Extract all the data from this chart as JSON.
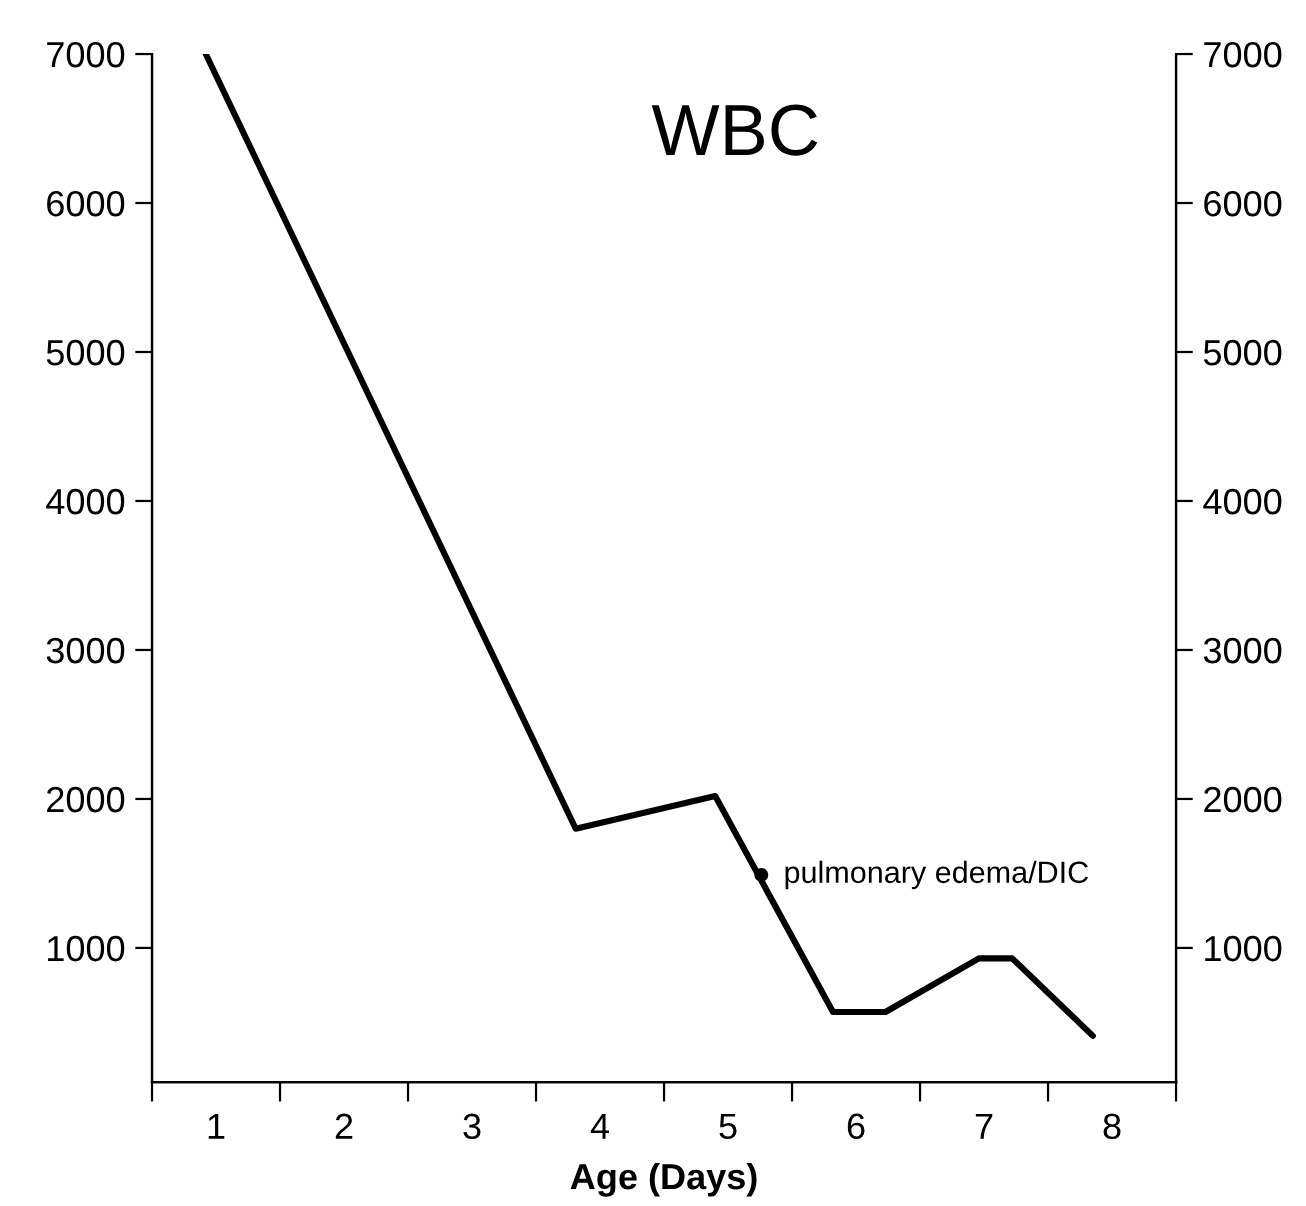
{
  "chart_data": {
    "type": "line",
    "title": "WBC",
    "xlabel": "Age (Days)",
    "x": [
      0.92,
      3.81,
      4.9,
      5.82,
      6.23,
      6.96,
      7.22,
      7.85
    ],
    "series": [
      {
        "color": "#000000",
        "values": [
          7000,
          1800,
          2020,
          570,
          570,
          930,
          930,
          410
        ]
      }
    ],
    "xlim": [
      0.5,
      8.5
    ],
    "xticks": [
      {
        "value": 0.5,
        "label": null
      },
      {
        "value": 1,
        "label": "1"
      },
      {
        "value": 1.5,
        "label": null
      },
      {
        "value": 2,
        "label": "2"
      },
      {
        "value": 2.5,
        "label": null
      },
      {
        "value": 3,
        "label": "3"
      },
      {
        "value": 3.5,
        "label": null
      },
      {
        "value": 4,
        "label": "4"
      },
      {
        "value": 4.5,
        "label": null
      },
      {
        "value": 5,
        "label": "5"
      },
      {
        "value": 5.5,
        "label": null
      },
      {
        "value": 6,
        "label": "6"
      },
      {
        "value": 6.5,
        "label": null
      },
      {
        "value": 7,
        "label": "7"
      },
      {
        "value": 7.5,
        "label": null
      },
      {
        "value": 8,
        "label": "8"
      },
      {
        "value": 8.5,
        "label": null
      }
    ],
    "ylim": [
      100,
      7000
    ],
    "yticks": [
      1000,
      2000,
      3000,
      4000,
      5000,
      6000,
      7000
    ],
    "y2lim": [
      100,
      7000
    ],
    "y2ticks": [
      1000,
      2000,
      3000,
      4000,
      5000,
      6000,
      7000
    ],
    "annotations": [
      {
        "text": "pulmonary edema/DIC",
        "x": 5.26,
        "y": 1490
      }
    ],
    "grid": false,
    "legend": false,
    "marker": "none",
    "line_style": "solid"
  }
}
